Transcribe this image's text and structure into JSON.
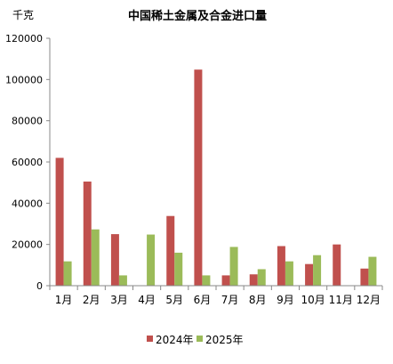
{
  "chart_data": {
    "type": "bar",
    "title": "中国稀土金属及合金进口量",
    "ylabel": "千克",
    "xlabel": "",
    "ylim": [
      0,
      120000
    ],
    "yticks": [
      0,
      20000,
      40000,
      60000,
      80000,
      100000,
      120000
    ],
    "grid": false,
    "legend_position": "bottom",
    "categories": [
      "1月",
      "2月",
      "3月",
      "4月",
      "5月",
      "6月",
      "7月",
      "8月",
      "9月",
      "10月",
      "11月",
      "12月"
    ],
    "series": [
      {
        "name": "2024年",
        "color": "#c0504d",
        "values": [
          62000,
          50500,
          25000,
          0,
          33800,
          104800,
          5000,
          5500,
          19200,
          10500,
          20000,
          8300
        ]
      },
      {
        "name": "2025年",
        "color": "#9bbb59",
        "values": [
          11800,
          27300,
          5000,
          24800,
          16000,
          5000,
          18800,
          8000,
          11800,
          14800,
          0,
          14000
        ]
      }
    ]
  }
}
